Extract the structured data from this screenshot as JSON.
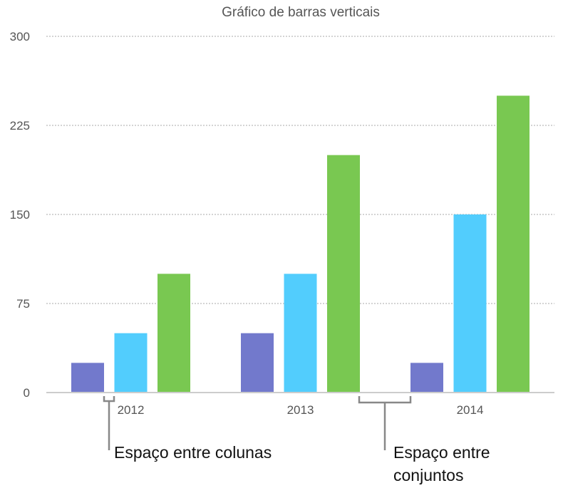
{
  "chart_data": {
    "type": "bar",
    "title": "Gráfico de barras verticais",
    "categories": [
      "2012",
      "2013",
      "2014"
    ],
    "series": [
      {
        "values": [
          25,
          50,
          25
        ],
        "color": "#7279cc"
      },
      {
        "values": [
          50,
          100,
          150
        ],
        "color": "#52cdfd"
      },
      {
        "values": [
          100,
          200,
          250
        ],
        "color": "#79c851"
      }
    ],
    "ylim": [
      0,
      300
    ],
    "yticks": [
      0,
      75,
      150,
      225,
      300
    ],
    "grid": true,
    "gridline_style": "dotted",
    "annotations": [
      {
        "text": "Espaço entre colunas"
      },
      {
        "text_lines": [
          "Espaço entre",
          "conjuntos"
        ]
      }
    ]
  }
}
